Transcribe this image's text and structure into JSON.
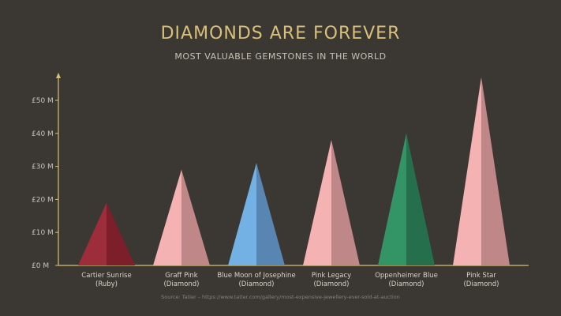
{
  "chart_data": {
    "type": "bar",
    "title": "DIAMONDS ARE FOREVER",
    "subtitle": "MOST VALUABLE GEMSTONES IN THE WORLD",
    "source": "Source: Tatler – https://www.tatler.com/gallery/most-expensive-jewellery-ever-sold-at-auction",
    "y_ticks": [
      "£0 M",
      "£10 M",
      "£20 M",
      "£30 M",
      "£40 M",
      "£50 M"
    ],
    "ylim": [
      0,
      57
    ],
    "categories": [
      {
        "name": "Cartier Sunrise",
        "sub": "(Ruby)",
        "value": 19,
        "color_light": "#9e2d3b",
        "color_dark": "#7c1f2b"
      },
      {
        "name": "Graff Pink",
        "sub": "(Diamond)",
        "value": 29,
        "color_light": "#f4b2b3",
        "color_dark": "#c08789"
      },
      {
        "name": "Blue Moon of Josephine",
        "sub": "(Diamond)",
        "value": 31,
        "color_light": "#73b0e4",
        "color_dark": "#5885b2"
      },
      {
        "name": "Pink Legacy",
        "sub": "(Diamond)",
        "value": 38,
        "color_light": "#f4b2b3",
        "color_dark": "#c08789"
      },
      {
        "name": "Oppenheimer Blue",
        "sub": "(Diamond)",
        "value": 40,
        "color_light": "#339465",
        "color_dark": "#266f4c"
      },
      {
        "name": "Pink Star",
        "sub": "(Diamond)",
        "value": 57,
        "color_light": "#f4b2b3",
        "color_dark": "#c08789"
      }
    ],
    "grid": false,
    "accent": "#d8c079"
  }
}
